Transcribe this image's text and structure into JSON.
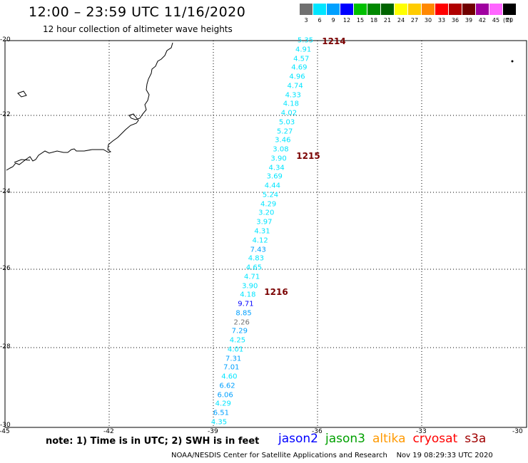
{
  "title": "12:00 – 23:59 UTC 11/16/2020",
  "subtitle": "12 hour collection of altimeter wave heights",
  "scale": {
    "unit_label": "(ft)",
    "entries": [
      {
        "label": "3",
        "color": "#707070"
      },
      {
        "label": "6",
        "color": "#00e5ff"
      },
      {
        "label": "9",
        "color": "#00a0ff"
      },
      {
        "label": "12",
        "color": "#0000ff"
      },
      {
        "label": "15",
        "color": "#00c000"
      },
      {
        "label": "18",
        "color": "#008800"
      },
      {
        "label": "21",
        "color": "#006400"
      },
      {
        "label": "24",
        "color": "#ffff00"
      },
      {
        "label": "27",
        "color": "#ffcc00"
      },
      {
        "label": "30",
        "color": "#ff8800"
      },
      {
        "label": "33",
        "color": "#ff0000"
      },
      {
        "label": "36",
        "color": "#b00000"
      },
      {
        "label": "39",
        "color": "#700000"
      },
      {
        "label": "42",
        "color": "#a000a0"
      },
      {
        "label": "45",
        "color": "#ff66ff"
      },
      {
        "label": "70",
        "color": "#000000"
      }
    ]
  },
  "axes": {
    "lat_ticks": [
      "-20",
      "-22",
      "-24",
      "-26",
      "-28",
      "-30"
    ],
    "lon_ticks": [
      "-45",
      "-42",
      "-39",
      "-36",
      "-33",
      "-30"
    ]
  },
  "pass_times": [
    "1214",
    "1215",
    "1216"
  ],
  "wave_heights": [
    {
      "value": "5.35",
      "color": "#00e5ff"
    },
    {
      "value": "4.91",
      "color": "#00e5ff"
    },
    {
      "value": "4.57",
      "color": "#00e5ff"
    },
    {
      "value": "4.69",
      "color": "#00e5ff"
    },
    {
      "value": "4.96",
      "color": "#00e5ff"
    },
    {
      "value": "4.74",
      "color": "#00e5ff"
    },
    {
      "value": "4.33",
      "color": "#00e5ff"
    },
    {
      "value": "4.18",
      "color": "#00e5ff"
    },
    {
      "value": "4.02",
      "color": "#00e5ff"
    },
    {
      "value": "5.03",
      "color": "#00e5ff"
    },
    {
      "value": "5.27",
      "color": "#00e5ff"
    },
    {
      "value": "3.46",
      "color": "#00e5ff"
    },
    {
      "value": "3.08",
      "color": "#00e5ff"
    },
    {
      "value": "3.90",
      "color": "#00e5ff"
    },
    {
      "value": "4.34",
      "color": "#00e5ff"
    },
    {
      "value": "3.69",
      "color": "#00e5ff"
    },
    {
      "value": "4.44",
      "color": "#00e5ff"
    },
    {
      "value": "5.24",
      "color": "#00e5ff"
    },
    {
      "value": "4.29",
      "color": "#00e5ff"
    },
    {
      "value": "3.20",
      "color": "#00e5ff"
    },
    {
      "value": "3.97",
      "color": "#00e5ff"
    },
    {
      "value": "4.31",
      "color": "#00e5ff"
    },
    {
      "value": "4.12",
      "color": "#00e5ff"
    },
    {
      "value": "7.43",
      "color": "#00a0ff"
    },
    {
      "value": "4.83",
      "color": "#00e5ff"
    },
    {
      "value": "4.65",
      "color": "#00e5ff"
    },
    {
      "value": "4.71",
      "color": "#00e5ff"
    },
    {
      "value": "3.90",
      "color": "#00e5ff"
    },
    {
      "value": "4.18",
      "color": "#00e5ff"
    },
    {
      "value": "9.71",
      "color": "#0000ff"
    },
    {
      "value": "8.85",
      "color": "#00a0ff"
    },
    {
      "value": "2.26",
      "color": "#707070"
    },
    {
      "value": "7.29",
      "color": "#00a0ff"
    },
    {
      "value": "4.25",
      "color": "#00e5ff"
    },
    {
      "value": "4.01",
      "color": "#00e5ff"
    },
    {
      "value": "7.31",
      "color": "#00a0ff"
    },
    {
      "value": "7.01",
      "color": "#00a0ff"
    },
    {
      "value": "4.60",
      "color": "#00e5ff"
    },
    {
      "value": "6.62",
      "color": "#00a0ff"
    },
    {
      "value": "6.06",
      "color": "#00a0ff"
    },
    {
      "value": "4.29",
      "color": "#00e5ff"
    },
    {
      "value": "6.51",
      "color": "#00a0ff"
    },
    {
      "value": "4.35",
      "color": "#00e5ff"
    }
  ],
  "note": "note: 1) Time is in UTC; 2) SWH is in feet",
  "satellites": [
    {
      "name": "jason2",
      "color": "#0000ff"
    },
    {
      "name": "jason3",
      "color": "#00a000"
    },
    {
      "name": "altika",
      "color": "#ff9900"
    },
    {
      "name": "cryosat",
      "color": "#ff0000"
    },
    {
      "name": "s3a",
      "color": "#a00000"
    }
  ],
  "credit": "NOAA/NESDIS Center for Satellite Applications and Research    Nov 19 08:29:33 UTC 2020"
}
